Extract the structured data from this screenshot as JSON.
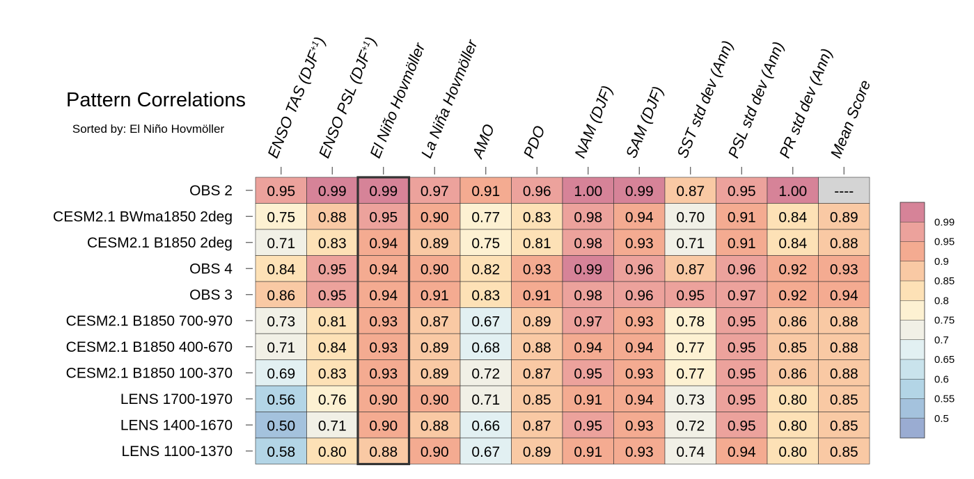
{
  "chart_data": {
    "type": "heatmap",
    "title": "Pattern Correlations",
    "subtitle": "Sorted by: El Niño Hovmöller",
    "columns": [
      "ENSO TAS (DJF+1)",
      "ENSO PSL (DJF+1)",
      "El Niño Hovmöller",
      "La Niña Hovmöller",
      "AMO",
      "PDO",
      "NAM (DJF)",
      "SAM (DJF)",
      "SST std dev (Ann)",
      "PSL std dev (Ann)",
      "PR std dev (Ann)",
      "Mean Score"
    ],
    "rows": [
      "OBS 2",
      "CESM2.1 BWma1850 2deg",
      "CESM2.1 B1850 2deg",
      "OBS 4",
      "OBS 3",
      "CESM2.1 B1850 700-970",
      "CESM2.1 B1850 400-670",
      "CESM2.1 B1850 100-370",
      "LENS 1700-1970",
      "LENS 1400-1670",
      "LENS 1100-1370"
    ],
    "values": [
      [
        "0.95",
        "0.99",
        "0.99",
        "0.97",
        "0.91",
        "0.96",
        "1.00",
        "0.99",
        "0.87",
        "0.95",
        "1.00",
        "----"
      ],
      [
        "0.75",
        "0.88",
        "0.95",
        "0.90",
        "0.77",
        "0.83",
        "0.98",
        "0.94",
        "0.70",
        "0.91",
        "0.84",
        "0.89"
      ],
      [
        "0.71",
        "0.83",
        "0.94",
        "0.89",
        "0.75",
        "0.81",
        "0.98",
        "0.93",
        "0.71",
        "0.91",
        "0.84",
        "0.88"
      ],
      [
        "0.84",
        "0.95",
        "0.94",
        "0.90",
        "0.82",
        "0.93",
        "0.99",
        "0.96",
        "0.87",
        "0.96",
        "0.92",
        "0.93"
      ],
      [
        "0.86",
        "0.95",
        "0.94",
        "0.91",
        "0.83",
        "0.91",
        "0.98",
        "0.96",
        "0.95",
        "0.97",
        "0.92",
        "0.94"
      ],
      [
        "0.73",
        "0.81",
        "0.93",
        "0.87",
        "0.67",
        "0.89",
        "0.97",
        "0.93",
        "0.78",
        "0.95",
        "0.86",
        "0.88"
      ],
      [
        "0.71",
        "0.84",
        "0.93",
        "0.89",
        "0.68",
        "0.88",
        "0.94",
        "0.94",
        "0.77",
        "0.95",
        "0.85",
        "0.88"
      ],
      [
        "0.69",
        "0.83",
        "0.93",
        "0.89",
        "0.72",
        "0.87",
        "0.95",
        "0.93",
        "0.77",
        "0.95",
        "0.86",
        "0.88"
      ],
      [
        "0.56",
        "0.76",
        "0.90",
        "0.90",
        "0.71",
        "0.85",
        "0.91",
        "0.94",
        "0.73",
        "0.95",
        "0.80",
        "0.85"
      ],
      [
        "0.50",
        "0.71",
        "0.90",
        "0.88",
        "0.66",
        "0.87",
        "0.95",
        "0.93",
        "0.72",
        "0.95",
        "0.80",
        "0.85"
      ],
      [
        "0.58",
        "0.80",
        "0.88",
        "0.90",
        "0.67",
        "0.89",
        "0.91",
        "0.93",
        "0.74",
        "0.94",
        "0.80",
        "0.85"
      ]
    ],
    "highlighted_column": "El Niño Hovmöller",
    "missing_color": "#d4d4d4",
    "colorbar": {
      "labels": [
        "0.99",
        "0.95",
        "0.9",
        "0.85",
        "0.8",
        "0.75",
        "0.7",
        "0.65",
        "0.6",
        "0.55",
        "0.5"
      ],
      "thresholds": [
        0.99,
        0.95,
        0.9,
        0.85,
        0.8,
        0.75,
        0.7,
        0.65,
        0.6,
        0.55,
        0.5
      ],
      "colors": [
        "#d68398",
        "#eca29c",
        "#f4ab91",
        "#f9c9a4",
        "#fde1b6",
        "#fdf1d2",
        "#f1f0e6",
        "#e2f0f2",
        "#c9e3ec",
        "#b3d5e6",
        "#a4c2dd",
        "#9aacd2"
      ]
    }
  }
}
